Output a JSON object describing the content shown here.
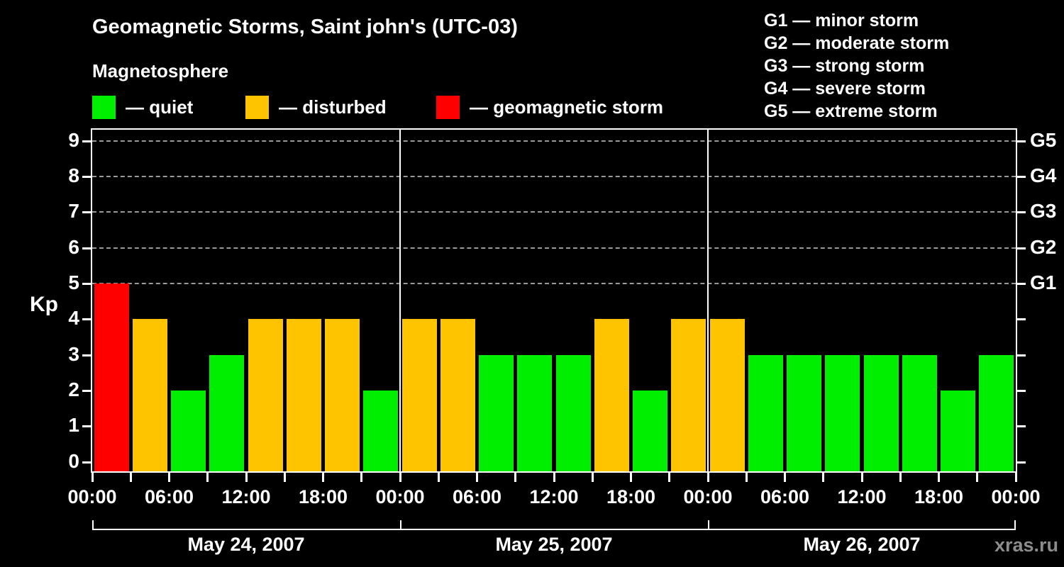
{
  "watermark": "xras.ru",
  "colors": {
    "background": "#000000",
    "axis": "#ffffff",
    "grid": "#999999",
    "quiet": "#00ee00",
    "disturbed": "#ffc400",
    "storm": "#ff0000",
    "watermark_color": "#8c8c8c"
  },
  "chart_data": {
    "type": "bar",
    "title": "Geomagnetic Storms, Saint john's (UTC-03)",
    "subtitle": "Magnetosphere",
    "ylabel": "Kp",
    "ylim": [
      0,
      9
    ],
    "yticks": [
      0,
      1,
      2,
      3,
      4,
      5,
      6,
      7,
      8,
      9
    ],
    "gridlines_kp": [
      5,
      6,
      7,
      8,
      9
    ],
    "grid_style": "dashed",
    "right_axis": [
      {
        "kp": 5,
        "label": "G1"
      },
      {
        "kp": 6,
        "label": "G2"
      },
      {
        "kp": 7,
        "label": "G3"
      },
      {
        "kp": 8,
        "label": "G4"
      },
      {
        "kp": 9,
        "label": "G5"
      }
    ],
    "legend": [
      {
        "label": "— quiet",
        "status": "quiet"
      },
      {
        "label": "— disturbed",
        "status": "disturbed"
      },
      {
        "label": "— geomagnetic storm",
        "status": "storm"
      }
    ],
    "g_scale_legend": [
      "G1 — minor storm",
      "G2 — moderate storm",
      "G3 — strong storm",
      "G4 — severe storm",
      "G5 — extreme storm"
    ],
    "bar_interval_hours": 3,
    "x_label_interval_hours": 6,
    "hour_labels": [
      "00:00",
      "06:00",
      "12:00",
      "18:00"
    ],
    "x_end_label": "00:00",
    "days": [
      {
        "date": "May 24, 2007",
        "kp": [
          5,
          4,
          2,
          3,
          4,
          4,
          4,
          2
        ],
        "status": [
          "storm",
          "disturbed",
          "quiet",
          "quiet",
          "disturbed",
          "disturbed",
          "disturbed",
          "quiet"
        ]
      },
      {
        "date": "May 25, 2007",
        "kp": [
          4,
          4,
          3,
          3,
          3,
          4,
          2,
          4
        ],
        "status": [
          "disturbed",
          "disturbed",
          "quiet",
          "quiet",
          "quiet",
          "disturbed",
          "quiet",
          "disturbed"
        ]
      },
      {
        "date": "May 26, 2007",
        "kp": [
          4,
          3,
          3,
          3,
          3,
          3,
          2,
          3
        ],
        "status": [
          "disturbed",
          "quiet",
          "quiet",
          "quiet",
          "quiet",
          "quiet",
          "quiet",
          "quiet"
        ]
      }
    ]
  }
}
